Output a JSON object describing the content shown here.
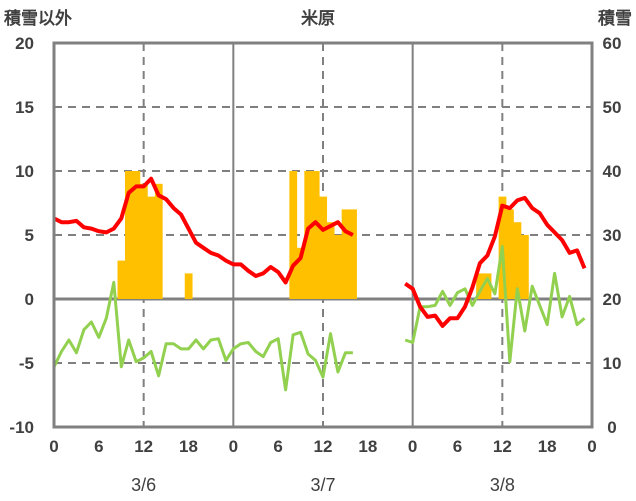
{
  "chart_data": {
    "type": "bar+line",
    "title": "米原",
    "ylabel_left": "積雪以外",
    "ylabel_right": "積雪",
    "ylim_left": [
      -10,
      20
    ],
    "ylim_right": [
      0,
      60
    ],
    "yticks_left": [
      "20",
      "15",
      "10",
      "5",
      "0",
      "-5",
      "-10"
    ],
    "yticks_right": [
      "60",
      "50",
      "40",
      "30",
      "20",
      "10",
      "0"
    ],
    "xlim_hours": [
      0,
      72
    ],
    "xticks": [
      "0",
      "6",
      "12",
      "18",
      "0",
      "6",
      "12",
      "18",
      "0",
      "6",
      "12",
      "18",
      "0"
    ],
    "days": [
      "3/6",
      "3/7",
      "3/8"
    ],
    "grid": true,
    "series": [
      {
        "name": "snow-bars",
        "type": "bar",
        "axis": "left",
        "color": "#FFC000",
        "hours": [
          9,
          10,
          11,
          12,
          13,
          14,
          18,
          32,
          33,
          34,
          35,
          36,
          37,
          38,
          39,
          40,
          57,
          58,
          60,
          61,
          62,
          63
        ],
        "values": [
          3,
          10,
          10,
          9,
          8,
          9,
          2,
          10,
          4,
          10,
          10,
          8,
          6,
          5,
          7,
          7,
          2,
          2,
          8,
          7,
          6,
          5
        ]
      },
      {
        "name": "red-line",
        "type": "line",
        "axis": "left",
        "color": "#FF0000",
        "segments": [
          {
            "start": 0,
            "values": [
              6.3,
              6.0,
              6.0,
              6.1,
              5.6,
              5.5,
              5.3,
              5.2,
              5.5,
              6.3,
              8.3,
              8.8,
              8.8,
              9.4,
              8.1,
              7.8,
              7.1,
              6.6,
              5.5,
              4.4,
              4.0,
              3.6,
              3.4,
              3.0,
              2.7,
              2.7,
              2.2,
              1.8,
              2.0,
              2.5,
              2.1,
              1.3,
              2.6,
              3.2,
              5.5,
              6.0,
              5.4,
              5.7,
              6.0,
              5.3,
              5.0
            ]
          },
          {
            "start": 47,
            "values": [
              1.2,
              0.8,
              -0.6,
              -1.4,
              -1.3,
              -2.1,
              -1.5,
              -1.5,
              -0.6,
              0.9,
              2.8,
              3.4,
              4.9,
              7.3,
              7.1,
              7.7,
              7.9,
              7.1,
              6.7,
              5.8,
              5.2,
              4.6,
              3.6,
              3.8,
              2.4
            ]
          }
        ]
      },
      {
        "name": "green-line",
        "type": "line",
        "axis": "left",
        "color": "#92D050",
        "segments": [
          {
            "start": 0,
            "values": [
              -5.3,
              -4.1,
              -3.2,
              -4.2,
              -2.4,
              -1.8,
              -3.0,
              -1.5,
              1.3,
              -5.3,
              -3.2,
              -4.9,
              -4.6,
              -4.1,
              -6.0,
              -3.5,
              -3.5,
              -3.9,
              -3.9,
              -3.2,
              -3.9,
              -3.2,
              -3.1,
              -4.8,
              -3.9,
              -3.5,
              -3.4,
              -4.1,
              -4.5,
              -3.4,
              -3.1,
              -7.1,
              -2.8,
              -2.6,
              -4.3,
              -4.8,
              -6.1,
              -2.7,
              -5.7,
              -4.2,
              -4.2
            ]
          },
          {
            "start": 47,
            "values": [
              -3.2,
              -3.4,
              -0.6,
              -0.6,
              -0.5,
              0.6,
              -0.5,
              0.5,
              0.8,
              -0.5,
              0.6,
              1.6,
              0.4,
              4.1,
              -4.9,
              0.8,
              -2.5,
              1.0,
              -0.5,
              -2.0,
              2.0,
              -1.4,
              0.2,
              -2.0,
              -1.5
            ]
          }
        ]
      },
      {
        "name": "purple-line",
        "type": "line",
        "axis": "left",
        "color": "#7030A0",
        "segments": [
          {
            "start": 0,
            "values": [
              -10,
              -10,
              -10,
              -10,
              -10,
              -10,
              -10,
              -10,
              -10,
              -10,
              -10,
              -10,
              -10,
              -10,
              -10,
              -10,
              -10,
              -10,
              -10,
              -10,
              -10,
              -10,
              -10,
              -10,
              -10,
              -10,
              -10,
              -10,
              -10,
              -10,
              -10,
              -10,
              -10,
              -10,
              -10,
              -10,
              -10,
              -10,
              -10,
              -10,
              -10
            ]
          },
          {
            "start": 47,
            "values": [
              -10,
              -10,
              -10,
              -10,
              -10,
              -10,
              -10,
              -10,
              -10,
              -10,
              -10,
              -10,
              -10,
              -10,
              -10,
              -10,
              -10,
              -10,
              -10,
              -10,
              -10,
              -10,
              -10,
              -10,
              -10
            ]
          }
        ]
      }
    ]
  }
}
